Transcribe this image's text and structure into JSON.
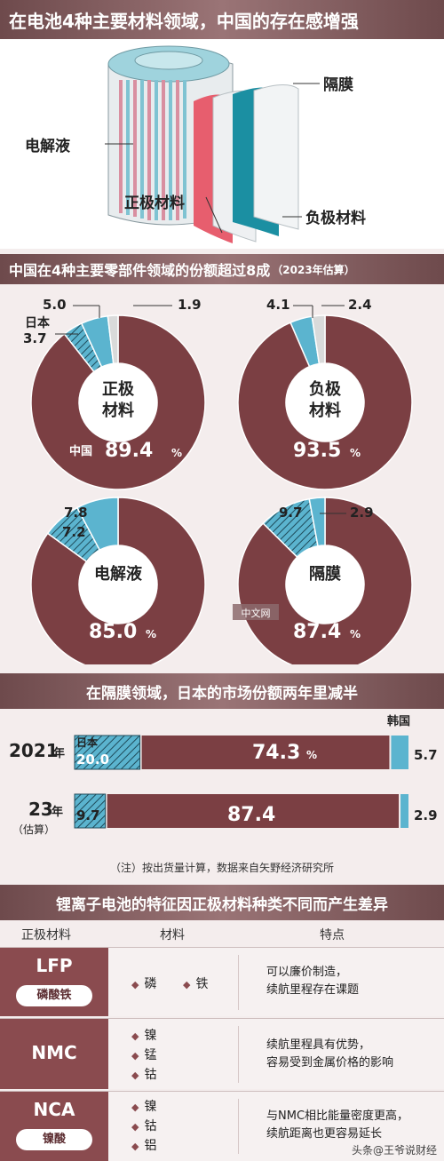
{
  "header": {
    "title": "在电池4种主要材料领域，中国的存在感增强"
  },
  "battery_labels": {
    "separator": "隔膜",
    "electrolyte": "电解液",
    "cathode": "正极材料",
    "anode": "负极材料"
  },
  "section2": {
    "title": "中国在4种主要零部件领域的份额超过8成",
    "note": "（2023年估算）"
  },
  "section3": {
    "title": "在隔膜领域，日本的市场份额两年里减半"
  },
  "section4": {
    "title": "锂离子电池的特征因正极材料种类不同而产生差异"
  },
  "footnote": "（注）按出货量计算，数据来自矢野经济研究所",
  "watermark": "中文网",
  "credit": "头条@王爷说财经",
  "colors": {
    "china": "#7b3f43",
    "japan": "#5bb4cf",
    "other": "#d9dada",
    "banner": "#7d5a5c"
  },
  "chart_data": [
    {
      "type": "pie",
      "title": "正极材料",
      "center_label": [
        "正极",
        "材料"
      ],
      "slices": [
        {
          "name": "中国",
          "value": 89.4,
          "label": "89.4"
        },
        {
          "name": "日本",
          "value": 3.7,
          "label": "3.7"
        },
        {
          "name": "",
          "value": 5.0,
          "label": "5.0"
        },
        {
          "name": "",
          "value": 1.9,
          "label": "1.9"
        }
      ],
      "unit": "%"
    },
    {
      "type": "pie",
      "title": "负极材料",
      "center_label": [
        "负极",
        "材料"
      ],
      "slices": [
        {
          "name": "中国",
          "value": 93.5,
          "label": "93.5"
        },
        {
          "name": "",
          "value": 4.1,
          "label": "4.1"
        },
        {
          "name": "",
          "value": 2.4,
          "label": "2.4"
        }
      ],
      "unit": "%"
    },
    {
      "type": "pie",
      "title": "电解液",
      "center_label": [
        "电解液"
      ],
      "slices": [
        {
          "name": "中国",
          "value": 85.0,
          "label": "85.0"
        },
        {
          "name": "",
          "value": 7.2,
          "label": "7.2"
        },
        {
          "name": "",
          "value": 7.8,
          "label": "7.8"
        }
      ],
      "unit": "%"
    },
    {
      "type": "pie",
      "title": "隔膜",
      "center_label": [
        "隔膜"
      ],
      "slices": [
        {
          "name": "中国",
          "value": 87.4,
          "label": "87.4"
        },
        {
          "name": "",
          "value": 9.7,
          "label": "9.7"
        },
        {
          "name": "",
          "value": 2.9,
          "label": "2.9"
        }
      ],
      "unit": "%"
    },
    {
      "type": "bar",
      "title": "在隔膜领域，日本的市场份额两年里减半",
      "orientation": "horizontal-stacked",
      "categories": [
        {
          "year": "2021",
          "year_suffix": "年",
          "sub": ""
        },
        {
          "year": "23",
          "year_suffix": "年",
          "sub": "（估算）"
        }
      ],
      "series": [
        {
          "name": "日本",
          "values": [
            20.0,
            9.7
          ],
          "labels": [
            "20.0",
            "9.7"
          ]
        },
        {
          "name": "中国",
          "values": [
            74.3,
            87.4
          ],
          "labels": [
            "74.3",
            "87.4"
          ]
        },
        {
          "name": "韩国",
          "values": [
            5.7,
            2.9
          ],
          "labels": [
            "5.7",
            "2.9"
          ]
        }
      ],
      "unit": "%",
      "xlim": [
        0,
        100
      ]
    },
    {
      "type": "table",
      "columns": [
        "正极材料",
        "材料",
        "特点"
      ],
      "rows": [
        {
          "code": "LFP",
          "name": "磷酸铁",
          "materials": [
            "磷",
            "铁"
          ],
          "features": [
            "可以廉价制造，",
            "续航里程存在课题"
          ]
        },
        {
          "code": "NMC",
          "name": "",
          "materials": [
            "镍",
            "锰",
            "钴"
          ],
          "features": [
            "续航里程具有优势，",
            "容易受到金属价格的影响"
          ]
        },
        {
          "code": "NCA",
          "name": "镍酸",
          "materials": [
            "镍",
            "钴",
            "铝"
          ],
          "features": [
            "与NMC相比能量密度更高，",
            "续航距离也更容易延长"
          ]
        }
      ]
    }
  ]
}
